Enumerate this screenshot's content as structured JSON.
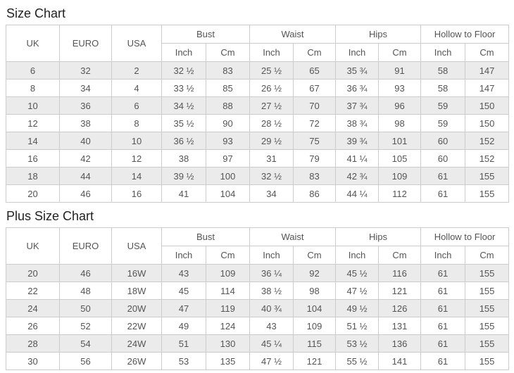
{
  "colors": {
    "stripe_row_bg": "#ebebeb",
    "table_border": "#cccccc",
    "cell_text": "#555555",
    "title_text": "#222222"
  },
  "tables": [
    {
      "title": "Size Chart",
      "rowspan_headers": [
        "UK",
        "EURO",
        "USA"
      ],
      "group_headers": [
        "Bust",
        "Waist",
        "Hips",
        "Hollow to Floor"
      ],
      "unit_headers": [
        "Inch",
        "Cm",
        "Inch",
        "Cm",
        "Inch",
        "Cm",
        "Inch",
        "Cm"
      ],
      "rows": [
        [
          "6",
          "32",
          "2",
          "32 ½",
          "83",
          "25 ½",
          "65",
          "35 ¾",
          "91",
          "58",
          "147"
        ],
        [
          "8",
          "34",
          "4",
          "33 ½",
          "85",
          "26 ½",
          "67",
          "36 ¾",
          "93",
          "58",
          "147"
        ],
        [
          "10",
          "36",
          "6",
          "34 ½",
          "88",
          "27 ½",
          "70",
          "37 ¾",
          "96",
          "59",
          "150"
        ],
        [
          "12",
          "38",
          "8",
          "35 ½",
          "90",
          "28 ½",
          "72",
          "38 ¾",
          "98",
          "59",
          "150"
        ],
        [
          "14",
          "40",
          "10",
          "36 ½",
          "93",
          "29 ½",
          "75",
          "39 ¾",
          "101",
          "60",
          "152"
        ],
        [
          "16",
          "42",
          "12",
          "38",
          "97",
          "31",
          "79",
          "41 ¼",
          "105",
          "60",
          "152"
        ],
        [
          "18",
          "44",
          "14",
          "39 ½",
          "100",
          "32 ½",
          "83",
          "42 ¾",
          "109",
          "61",
          "155"
        ],
        [
          "20",
          "46",
          "16",
          "41",
          "104",
          "34",
          "86",
          "44 ¼",
          "112",
          "61",
          "155"
        ]
      ]
    },
    {
      "title": "Plus Size Chart",
      "rowspan_headers": [
        "UK",
        "EURO",
        "USA"
      ],
      "group_headers": [
        "Bust",
        "Waist",
        "Hips",
        "Hollow to Floor"
      ],
      "unit_headers": [
        "Inch",
        "Cm",
        "Inch",
        "Cm",
        "Inch",
        "Cm",
        "Inch",
        "Cm"
      ],
      "rows": [
        [
          "20",
          "46",
          "16W",
          "43",
          "109",
          "36 ¼",
          "92",
          "45 ½",
          "116",
          "61",
          "155"
        ],
        [
          "22",
          "48",
          "18W",
          "45",
          "114",
          "38 ½",
          "98",
          "47 ½",
          "121",
          "61",
          "155"
        ],
        [
          "24",
          "50",
          "20W",
          "47",
          "119",
          "40 ¾",
          "104",
          "49 ½",
          "126",
          "61",
          "155"
        ],
        [
          "26",
          "52",
          "22W",
          "49",
          "124",
          "43",
          "109",
          "51 ½",
          "131",
          "61",
          "155"
        ],
        [
          "28",
          "54",
          "24W",
          "51",
          "130",
          "45 ¼",
          "115",
          "53 ½",
          "136",
          "61",
          "155"
        ],
        [
          "30",
          "56",
          "26W",
          "53",
          "135",
          "47 ½",
          "121",
          "55 ½",
          "141",
          "61",
          "155"
        ]
      ]
    }
  ]
}
